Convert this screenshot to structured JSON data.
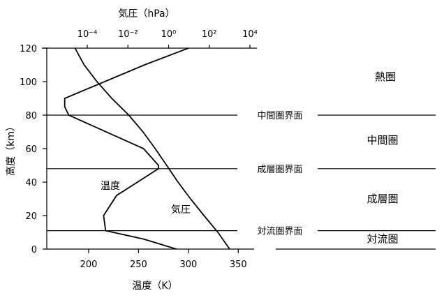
{
  "chart_data": {
    "type": "line",
    "title": "",
    "xlabel": "温度（K）",
    "ylabel": "高度（km）",
    "top_xlabel": "気圧（hPa）",
    "xlim": [
      158,
      368
    ],
    "ylim": [
      0,
      120
    ],
    "xticks": [
      200,
      250,
      300,
      350
    ],
    "yticks": [
      0,
      20,
      40,
      60,
      80,
      100,
      120
    ],
    "top_axis": {
      "scale": "log",
      "ticks": [
        {
          "label": "10⁻⁴",
          "value": 0.0001
        },
        {
          "label": "10⁻²",
          "value": 0.01
        },
        {
          "label": "10⁰",
          "value": 1
        },
        {
          "label": "10²",
          "value": 100
        },
        {
          "label": "10⁴",
          "value": 10000
        }
      ]
    },
    "series": [
      {
        "name": "温度",
        "axis": "bottom",
        "points": [
          [
            288,
            0
          ],
          [
            255,
            6
          ],
          [
            217,
            11
          ],
          [
            215,
            20
          ],
          [
            228,
            32
          ],
          [
            270,
            48
          ],
          [
            270,
            50
          ],
          [
            255,
            60
          ],
          [
            180,
            80
          ],
          [
            176,
            85
          ],
          [
            176,
            90
          ],
          [
            256,
            110
          ],
          [
            300,
            120
          ]
        ]
      },
      {
        "name": "気圧",
        "axis": "top",
        "points": [
          [
            1013,
            0
          ],
          [
            265,
            10
          ],
          [
            55,
            20
          ],
          [
            12,
            30
          ],
          [
            2.9,
            40
          ],
          [
            0.8,
            50
          ],
          [
            0.22,
            60
          ],
          [
            0.055,
            70
          ],
          [
            0.011,
            80
          ],
          [
            0.0016,
            90
          ],
          [
            0.0003,
            100
          ],
          [
            7e-05,
            110
          ],
          [
            2.5e-05,
            120
          ]
        ]
      }
    ],
    "boundaries": [
      {
        "name": "対流圏界面",
        "altitude": 11
      },
      {
        "name": "成層圏界面",
        "altitude": 48
      },
      {
        "name": "中間圏界面",
        "altitude": 80
      }
    ],
    "layers": [
      {
        "name": "対流圏",
        "altitude": 6
      },
      {
        "name": "成層圏",
        "altitude": 30
      },
      {
        "name": "中間圏",
        "altitude": 65
      },
      {
        "name": "熱圏",
        "altitude": 103
      }
    ],
    "grid": false,
    "legend": "none"
  }
}
